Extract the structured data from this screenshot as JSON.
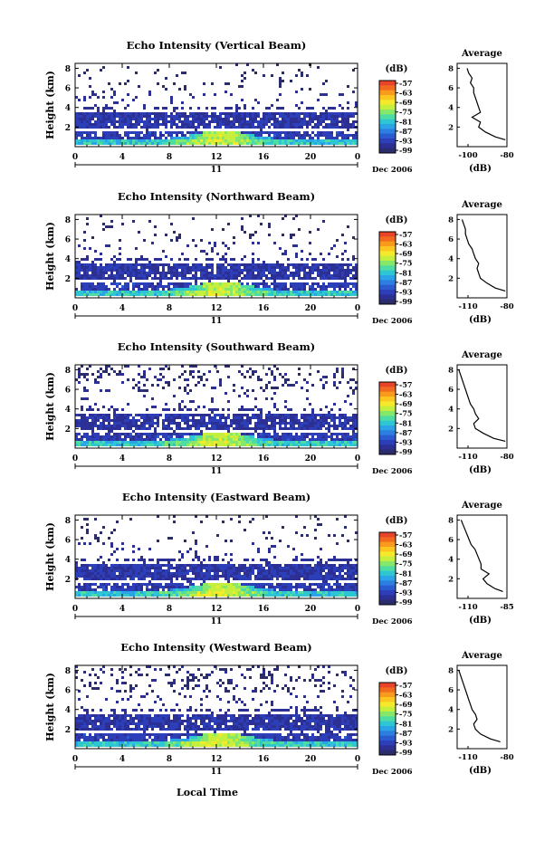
{
  "figure": {
    "xaxis_label": "Local Time",
    "date_label": "11",
    "month_label": "Dec 2006",
    "ylabel": "Height (km)",
    "colorbar_unit": "(dB)",
    "colorbar_ticks": [
      "-57",
      "-63",
      "-69",
      "-75",
      "-81",
      "-87",
      "-93",
      "-99"
    ],
    "colorbar_colors": [
      "#e8442a",
      "#f26a1f",
      "#f99a1c",
      "#fcc51f",
      "#f4e92a",
      "#c6ee3c",
      "#86e86a",
      "#4fdca3",
      "#2fc6d3",
      "#2aa4e6",
      "#2c7fe0",
      "#2b5bd1",
      "#2d3fb8",
      "#2c2f94",
      "#2b2c6c"
    ],
    "avg_title": "Average",
    "avg_xlabel": "(dB)"
  },
  "chart_data": [
    {
      "type": "heatmap",
      "title": "Echo Intensity (Vertical Beam)",
      "xlabel": "Local Time",
      "ylabel": "Height (km)",
      "xlim": [
        0,
        24
      ],
      "ylim": [
        0,
        8
      ],
      "xticks": [
        "0",
        "4",
        "8",
        "12",
        "16",
        "20",
        "0"
      ],
      "yticks": [
        "2",
        "4",
        "6",
        "8"
      ],
      "colorbar": {
        "unit": "(dB)",
        "min": -99,
        "max": -57
      },
      "average_profile": {
        "title": "Average",
        "xlabel": "(dB)",
        "xlim": [
          -110,
          -80
        ],
        "xticks": [
          "-100",
          "-80"
        ],
        "yticks": [
          "2",
          "4",
          "6",
          "8"
        ],
        "height_km": [
          0.7,
          1.0,
          1.5,
          2.0,
          2.5,
          3.0,
          3.5,
          4.0,
          4.5,
          5.0,
          5.5,
          6.0,
          6.5,
          7.0,
          7.5,
          8.0
        ],
        "value_db": [
          -81,
          -87,
          -93,
          -97,
          -96,
          -101,
          -96,
          -97,
          -98,
          -99,
          -100,
          -100,
          -102,
          -101,
          -103,
          -104
        ]
      }
    },
    {
      "type": "heatmap",
      "title": "Echo Intensity (Northward Beam)",
      "xlabel": "Local Time",
      "ylabel": "Height (km)",
      "xlim": [
        0,
        24
      ],
      "ylim": [
        0,
        8
      ],
      "xticks": [
        "0",
        "4",
        "8",
        "12",
        "16",
        "20",
        "0"
      ],
      "yticks": [
        "2",
        "4",
        "6",
        "8"
      ],
      "colorbar": {
        "unit": "(dB)",
        "min": -99,
        "max": -57
      },
      "average_profile": {
        "title": "Average",
        "xlabel": "(dB)",
        "xlim": [
          -110,
          -80
        ],
        "xticks": [
          "-110",
          "-80"
        ],
        "yticks": [
          "2",
          "4",
          "6",
          "8"
        ],
        "height_km": [
          0.7,
          1.0,
          1.5,
          2.0,
          2.5,
          3.0,
          3.5,
          4.0,
          4.5,
          5.0,
          5.5,
          6.0,
          6.5,
          7.0,
          7.5,
          8.0
        ],
        "value_db": [
          -81,
          -87,
          -92,
          -96,
          -97,
          -98,
          -97,
          -99,
          -100,
          -101,
          -103,
          -104,
          -105,
          -105,
          -106,
          -107
        ]
      }
    },
    {
      "type": "heatmap",
      "title": "Echo Intensity (Southward Beam)",
      "xlabel": "Local Time",
      "ylabel": "Height (km)",
      "xlim": [
        0,
        24
      ],
      "ylim": [
        0,
        8
      ],
      "xticks": [
        "0",
        "4",
        "8",
        "12",
        "16",
        "20",
        "0"
      ],
      "yticks": [
        "2",
        "4",
        "6",
        "8"
      ],
      "colorbar": {
        "unit": "(dB)",
        "min": -99,
        "max": -57
      },
      "average_profile": {
        "title": "Average",
        "xlabel": "(dB)",
        "xlim": [
          -110,
          -80
        ],
        "xticks": [
          "-110",
          "-80"
        ],
        "yticks": [
          "2",
          "4",
          "6",
          "8"
        ],
        "height_km": [
          0.7,
          1.0,
          1.5,
          2.0,
          2.5,
          3.0,
          3.5,
          4.0,
          4.5,
          5.0,
          5.5,
          6.0,
          6.5,
          7.0,
          7.5,
          8.0
        ],
        "value_db": [
          -81,
          -88,
          -94,
          -99,
          -100,
          -97,
          -99,
          -100,
          -102,
          -103,
          -104,
          -105,
          -106,
          -107,
          -108,
          -109
        ]
      }
    },
    {
      "type": "heatmap",
      "title": "Echo Intensity (Eastward Beam)",
      "xlabel": "Local Time",
      "ylabel": "Height (km)",
      "xlim": [
        0,
        24
      ],
      "ylim": [
        0,
        8
      ],
      "xticks": [
        "0",
        "4",
        "8",
        "12",
        "16",
        "20",
        "0"
      ],
      "yticks": [
        "2",
        "4",
        "6",
        "8"
      ],
      "colorbar": {
        "unit": "(dB)",
        "min": -99,
        "max": -57
      },
      "average_profile": {
        "title": "Average",
        "xlabel": "(dB)",
        "xlim": [
          -110,
          -85
        ],
        "xticks": [
          "-110",
          "-85"
        ],
        "yticks": [
          "2",
          "4",
          "6",
          "8"
        ],
        "height_km": [
          0.7,
          1.0,
          1.5,
          2.0,
          2.5,
          3.0,
          3.5,
          4.0,
          4.5,
          5.0,
          5.5,
          6.0,
          6.5,
          7.0,
          7.5,
          8.0
        ],
        "value_db": [
          -87,
          -91,
          -95,
          -97,
          -94,
          -98,
          -98,
          -99,
          -100,
          -101,
          -103,
          -104,
          -105,
          -106,
          -107,
          -108
        ]
      }
    },
    {
      "type": "heatmap",
      "title": "Echo Intensity (Westward Beam)",
      "xlabel": "Local Time",
      "ylabel": "Height (km)",
      "xlim": [
        0,
        24
      ],
      "ylim": [
        0,
        8
      ],
      "xticks": [
        "0",
        "4",
        "8",
        "12",
        "16",
        "20",
        "0"
      ],
      "yticks": [
        "2",
        "4",
        "6",
        "8"
      ],
      "colorbar": {
        "unit": "(dB)",
        "min": -99,
        "max": -57
      },
      "average_profile": {
        "title": "Average",
        "xlabel": "(dB)",
        "xlim": [
          -110,
          -80
        ],
        "xticks": [
          "-110",
          "-80"
        ],
        "yticks": [
          "2",
          "4",
          "6",
          "8"
        ],
        "height_km": [
          0.7,
          1.0,
          1.5,
          2.0,
          2.5,
          3.0,
          3.5,
          4.0,
          4.5,
          5.0,
          5.5,
          6.0,
          6.5,
          7.0,
          7.5,
          8.0
        ],
        "value_db": [
          -84,
          -90,
          -96,
          -99,
          -100,
          -98,
          -99,
          -101,
          -102,
          -103,
          -104,
          -105,
          -106,
          -107,
          -108,
          -109
        ]
      }
    }
  ]
}
